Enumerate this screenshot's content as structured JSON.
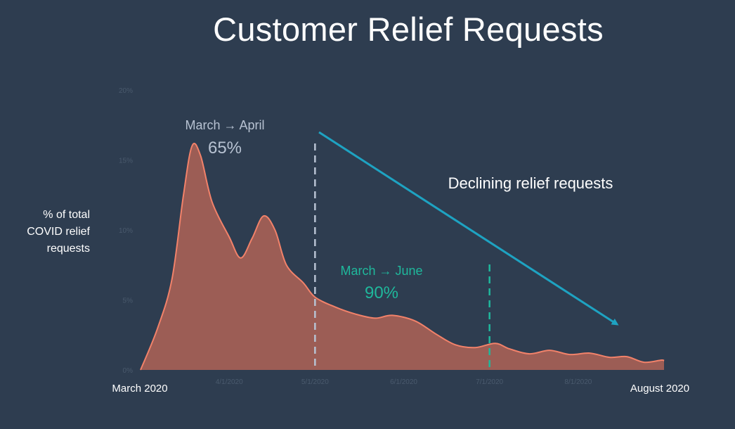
{
  "title": "Customer Relief Requests",
  "colors": {
    "background": "#2e3d50",
    "area_fill": "#9c5d55",
    "area_stroke": "#f2826a",
    "trend_arrow": "#1ea3c2",
    "april_marker": "#b7c2d2",
    "june_marker": "#1fb89c",
    "tick_label": "#4a5a6d"
  },
  "chart_data": {
    "type": "area",
    "ylabel": [
      "% of total",
      "COVID relief",
      "requests"
    ],
    "xlabel": "",
    "x_range_labels": {
      "start": "March 2020",
      "end": "August 2020"
    },
    "x_domain": [
      "2020-03-01",
      "2020-08-31"
    ],
    "ylim": [
      0,
      20
    ],
    "y_ticks": [
      {
        "value": 0,
        "label": "0%"
      },
      {
        "value": 5,
        "label": "5%"
      },
      {
        "value": 10,
        "label": "10%"
      },
      {
        "value": 15,
        "label": "15%"
      },
      {
        "value": 20,
        "label": "20%"
      }
    ],
    "x_ticks": [
      {
        "x": "2020-04-01",
        "label": "4/1/2020"
      },
      {
        "x": "2020-05-01",
        "label": "5/1/2020"
      },
      {
        "x": "2020-06-01",
        "label": "6/1/2020"
      },
      {
        "x": "2020-07-01",
        "label": "7/1/2020"
      },
      {
        "x": "2020-08-01",
        "label": "8/1/2020"
      }
    ],
    "grid": false,
    "legend": "none",
    "series": [
      {
        "values": [
          {
            "x": "2020-03-01",
            "y": 0.0
          },
          {
            "x": "2020-03-07",
            "y": 3.0
          },
          {
            "x": "2020-03-12",
            "y": 6.5
          },
          {
            "x": "2020-03-16",
            "y": 12.5
          },
          {
            "x": "2020-03-19",
            "y": 16.0
          },
          {
            "x": "2020-03-22",
            "y": 15.3
          },
          {
            "x": "2020-03-26",
            "y": 12.0
          },
          {
            "x": "2020-04-01",
            "y": 9.5
          },
          {
            "x": "2020-04-05",
            "y": 8.0
          },
          {
            "x": "2020-04-09",
            "y": 9.4
          },
          {
            "x": "2020-04-13",
            "y": 11.0
          },
          {
            "x": "2020-04-17",
            "y": 10.0
          },
          {
            "x": "2020-04-21",
            "y": 7.5
          },
          {
            "x": "2020-04-27",
            "y": 6.2
          },
          {
            "x": "2020-05-01",
            "y": 5.2
          },
          {
            "x": "2020-05-08",
            "y": 4.5
          },
          {
            "x": "2020-05-15",
            "y": 4.0
          },
          {
            "x": "2020-05-22",
            "y": 3.7
          },
          {
            "x": "2020-05-28",
            "y": 3.9
          },
          {
            "x": "2020-06-05",
            "y": 3.5
          },
          {
            "x": "2020-06-12",
            "y": 2.6
          },
          {
            "x": "2020-06-19",
            "y": 1.8
          },
          {
            "x": "2020-06-26",
            "y": 1.6
          },
          {
            "x": "2020-07-03",
            "y": 1.9
          },
          {
            "x": "2020-07-08",
            "y": 1.5
          },
          {
            "x": "2020-07-15",
            "y": 1.15
          },
          {
            "x": "2020-07-22",
            "y": 1.4
          },
          {
            "x": "2020-07-29",
            "y": 1.1
          },
          {
            "x": "2020-08-05",
            "y": 1.2
          },
          {
            "x": "2020-08-12",
            "y": 0.9
          },
          {
            "x": "2020-08-18",
            "y": 0.95
          },
          {
            "x": "2020-08-24",
            "y": 0.55
          },
          {
            "x": "2020-08-30",
            "y": 0.7
          },
          {
            "x": "2020-08-31",
            "y": 0.65
          }
        ]
      }
    ],
    "annotations": [
      {
        "id": "april",
        "label": "March → April",
        "value_label": "65%",
        "marker_x": "2020-05-01"
      },
      {
        "id": "june",
        "label": "March → June",
        "value_label": "90%",
        "marker_x": "2020-07-01"
      },
      {
        "id": "trend",
        "label": "Declining relief requests"
      }
    ]
  }
}
